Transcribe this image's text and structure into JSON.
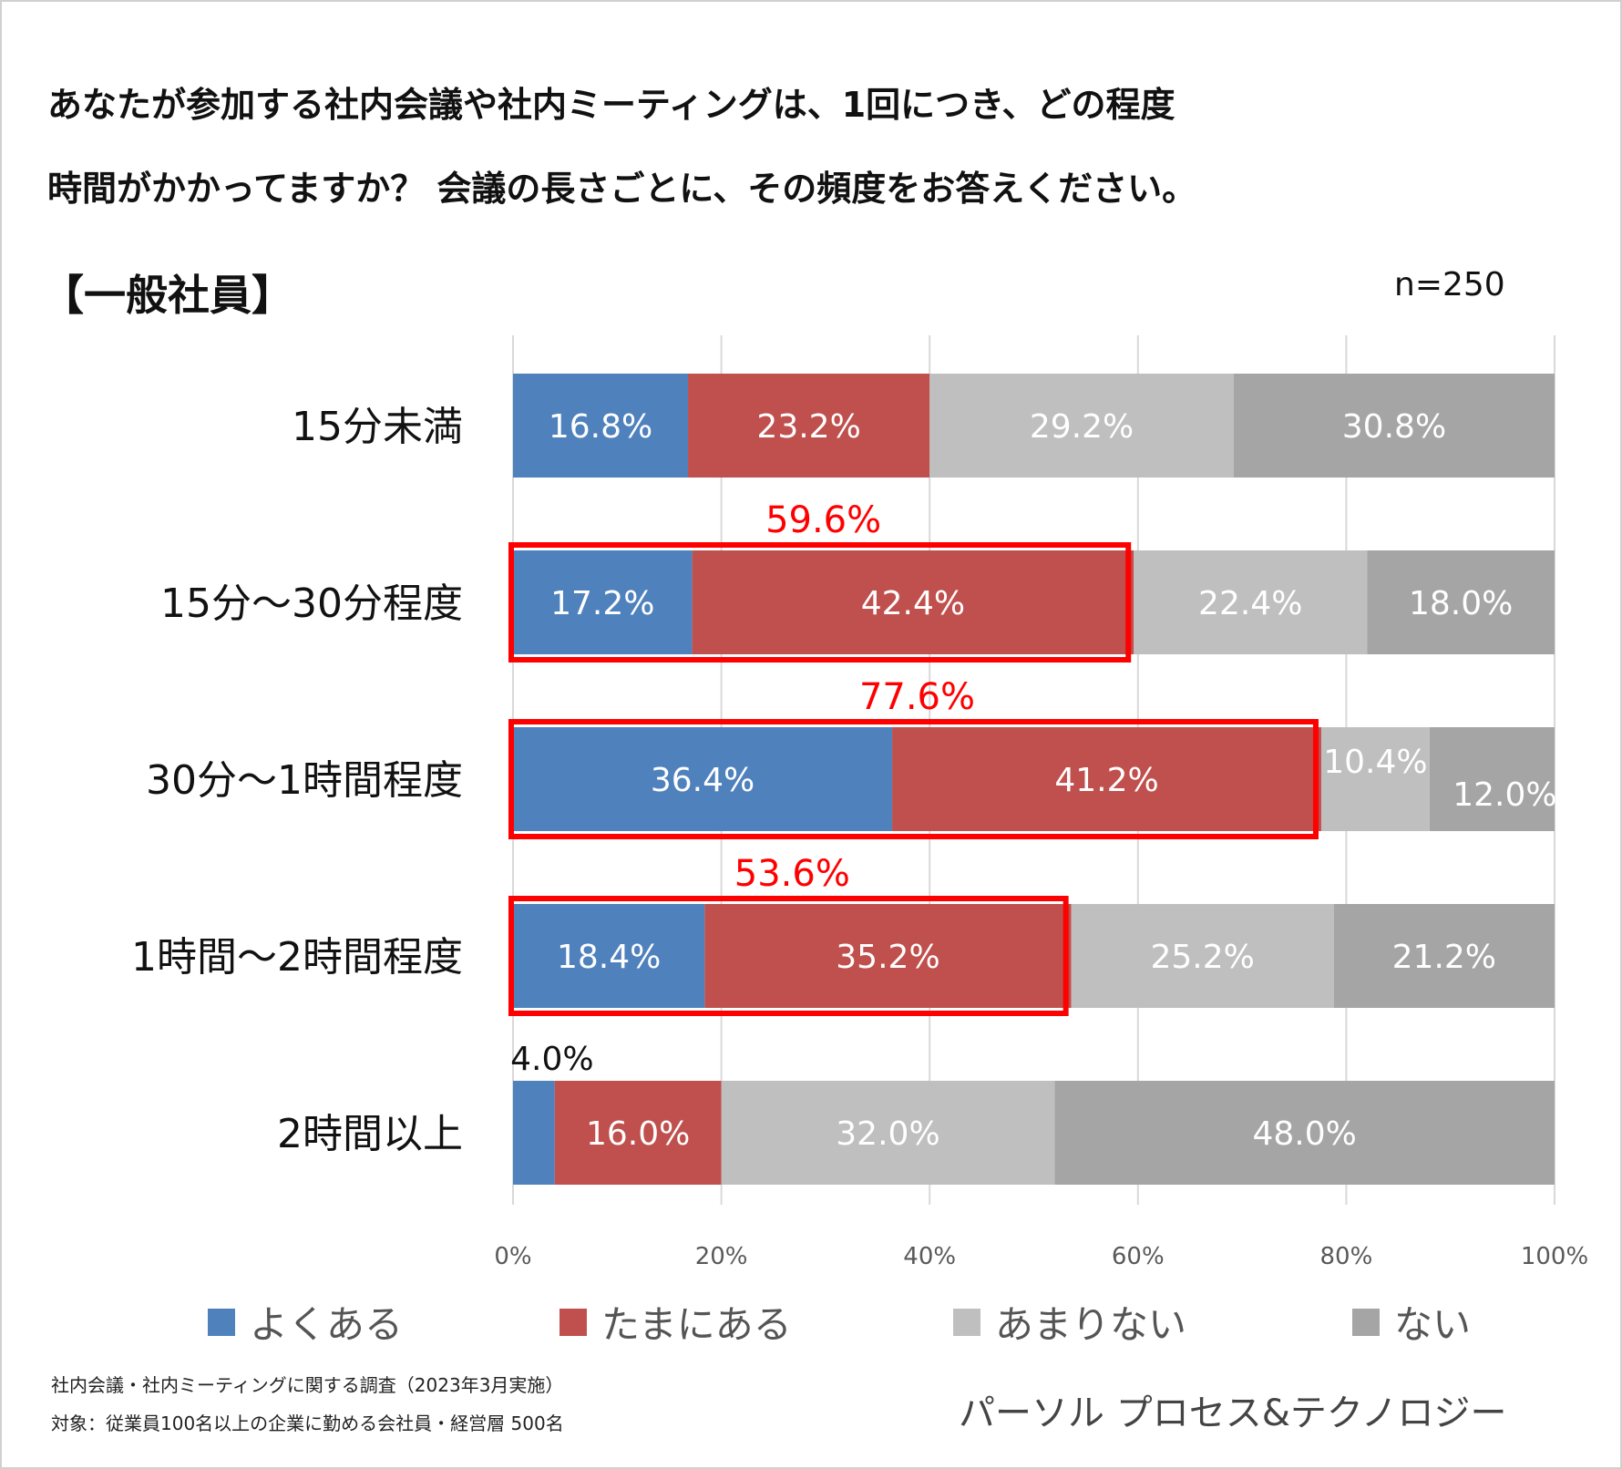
{
  "header": {
    "title_line1": "あなたが参加する社内会議や社内ミーティングは、1回につき、どの程度",
    "title_line2": "時間がかかってますか？ 会議の長さごとに、その頻度をお答えください。",
    "subtitle": "【一般社員】",
    "sample_size": "n=250"
  },
  "chart_data": {
    "type": "bar",
    "orientation": "horizontal",
    "stacked": true,
    "categories": [
      "15分未満",
      "15分～30分程度",
      "30分～1時間程度",
      "1時間～2時間程度",
      "2時間以上"
    ],
    "series": [
      {
        "name": "よくある",
        "color": "#4f81bd",
        "values": [
          16.8,
          17.2,
          36.4,
          18.4,
          4.0
        ]
      },
      {
        "name": "たまにある",
        "color": "#c0504d",
        "values": [
          23.2,
          42.4,
          41.2,
          35.2,
          16.0
        ]
      },
      {
        "name": "あまりない",
        "color": "#bfbfbf",
        "values": [
          29.2,
          22.4,
          10.4,
          25.2,
          32.0
        ]
      },
      {
        "name": "ない",
        "color": "#a5a5a5",
        "values": [
          30.8,
          18.0,
          12.0,
          21.2,
          48.0
        ]
      }
    ],
    "value_labels": [
      [
        "16.8%",
        "23.2%",
        "29.2%",
        "30.8%"
      ],
      [
        "17.2%",
        "42.4%",
        "22.4%",
        "18.0%"
      ],
      [
        "36.4%",
        "41.2%",
        "10.4%",
        "12.0%"
      ],
      [
        "18.4%",
        "35.2%",
        "25.2%",
        "21.2%"
      ],
      [
        "4.0%",
        "16.0%",
        "32.0%",
        "48.0%"
      ]
    ],
    "highlights": [
      {
        "category_index": 1,
        "total": 59.6,
        "label": "59.6%"
      },
      {
        "category_index": 2,
        "total": 77.6,
        "label": "77.6%"
      },
      {
        "category_index": 3,
        "total": 53.6,
        "label": "53.6%"
      }
    ],
    "x_ticks": [
      0,
      20,
      40,
      60,
      80,
      100
    ],
    "x_tick_labels": [
      "0%",
      "20%",
      "40%",
      "60%",
      "80%",
      "100%"
    ],
    "xlim": [
      0,
      100
    ],
    "grid": true,
    "legend_position": "bottom",
    "highlight_color": "#ff0000"
  },
  "footer": {
    "survey": "社内会議・社内ミーティングに関する調査（2023年3月実施）",
    "target": "対象：従業員100名以上の企業に勤める会社員・経営層 500名",
    "company": "パーソル プロセス&テクノロジー"
  }
}
